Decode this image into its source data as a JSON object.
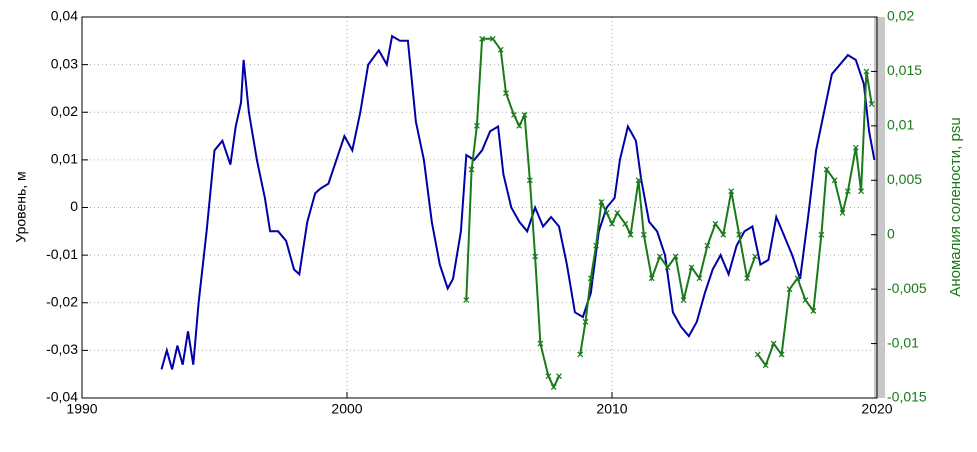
{
  "chart_data": {
    "type": "line",
    "ylabel": "Уровень, м",
    "y2label": "Аномалия солености, psu",
    "xlim": [
      1990,
      2020
    ],
    "xticks": [
      1990,
      2000,
      2010,
      2020
    ],
    "ylim": [
      -0.04,
      0.04
    ],
    "yticks": [
      {
        "value": -0.04,
        "label": "-0,04"
      },
      {
        "value": -0.03,
        "label": "-0,03"
      },
      {
        "value": -0.02,
        "label": "-0,02"
      },
      {
        "value": -0.01,
        "label": "-0,01"
      },
      0,
      {
        "value": 0.01,
        "label": "0,01"
      },
      {
        "value": 0.02,
        "label": "0,02"
      },
      {
        "value": 0.03,
        "label": "0,03"
      },
      {
        "value": 0.04,
        "label": "0,04"
      }
    ],
    "y2lim": [
      -0.015,
      0.02
    ],
    "y2ticks": [
      {
        "value": -0.015,
        "label": "-0,015"
      },
      {
        "value": -0.01,
        "label": "-0,01"
      },
      {
        "value": -0.005,
        "label": "-0,005"
      },
      0,
      {
        "value": 0.005,
        "label": "0,005"
      },
      {
        "value": 0.01,
        "label": "0,01"
      },
      {
        "value": 0.015,
        "label": "0,015"
      },
      {
        "value": 0.02,
        "label": "0,02"
      }
    ],
    "grid": true,
    "series": [
      {
        "color": "#0000a8",
        "axis": "y",
        "x": [
          1993.0,
          1993.2,
          1993.4,
          1993.6,
          1993.8,
          1994.0,
          1994.2,
          1994.4,
          1994.7,
          1995.0,
          1995.3,
          1995.6,
          1995.8,
          1996.0,
          1996.1,
          1996.3,
          1996.6,
          1996.9,
          1997.1,
          1997.4,
          1997.7,
          1998.0,
          1998.2,
          1998.5,
          1998.8,
          1999.0,
          1999.3,
          1999.6,
          1999.9,
          2000.2,
          2000.5,
          2000.8,
          2001.2,
          2001.5,
          2001.7,
          2002.0,
          2002.3,
          2002.6,
          2002.9,
          2003.2,
          2003.5,
          2003.8,
          2004.0,
          2004.3,
          2004.5,
          2004.8,
          2005.1,
          2005.4,
          2005.7,
          2005.9,
          2006.2,
          2006.5,
          2006.8,
          2007.1,
          2007.4,
          2007.7,
          2008.0,
          2008.3,
          2008.6,
          2008.9,
          2009.2,
          2009.5,
          2009.8,
          2010.1,
          2010.3,
          2010.6,
          2010.9,
          2011.1,
          2011.4,
          2011.7,
          2012.0,
          2012.3,
          2012.6,
          2012.9,
          2013.2,
          2013.5,
          2013.8,
          2014.1,
          2014.4,
          2014.7,
          2015.0,
          2015.3,
          2015.6,
          2015.9,
          2016.2,
          2016.5,
          2016.8,
          2017.1,
          2017.4,
          2017.7,
          2018.0,
          2018.3,
          2018.6,
          2018.9,
          2019.2,
          2019.5,
          2019.7,
          2019.9
        ],
        "values": [
          -0.034,
          -0.03,
          -0.034,
          -0.029,
          -0.033,
          -0.026,
          -0.033,
          -0.02,
          -0.005,
          0.012,
          0.014,
          0.009,
          0.017,
          0.022,
          0.031,
          0.02,
          0.01,
          0.002,
          -0.005,
          -0.005,
          -0.007,
          -0.013,
          -0.014,
          -0.003,
          0.003,
          0.004,
          0.005,
          0.01,
          0.015,
          0.012,
          0.02,
          0.03,
          0.033,
          0.03,
          0.036,
          0.035,
          0.035,
          0.018,
          0.01,
          -0.003,
          -0.012,
          -0.017,
          -0.015,
          -0.005,
          0.011,
          0.01,
          0.012,
          0.016,
          0.017,
          0.007,
          0.0,
          -0.003,
          -0.005,
          0.0,
          -0.004,
          -0.002,
          -0.004,
          -0.012,
          -0.022,
          -0.023,
          -0.018,
          -0.005,
          0.0,
          0.002,
          0.01,
          0.017,
          0.014,
          0.006,
          -0.003,
          -0.005,
          -0.01,
          -0.022,
          -0.025,
          -0.027,
          -0.024,
          -0.018,
          -0.013,
          -0.01,
          -0.014,
          -0.008,
          -0.005,
          -0.004,
          -0.012,
          -0.011,
          -0.002,
          -0.006,
          -0.01,
          -0.015,
          -0.002,
          0.012,
          0.02,
          0.028,
          0.03,
          0.032,
          0.031,
          0.026,
          0.016,
          0.01
        ]
      },
      {
        "color": "#1a7a1a",
        "axis": "y2",
        "marker": "x",
        "x": [
          2004.5,
          2004.7,
          2004.9,
          2005.1,
          2005.5,
          2005.8,
          2006.0,
          2006.3,
          2006.5,
          2006.7,
          2006.9,
          2007.1,
          2007.3,
          2007.6,
          2007.8,
          2008.0,
          null,
          2008.8,
          2009.0,
          2009.2,
          2009.4,
          2009.6,
          2009.8,
          2010.0,
          2010.2,
          2010.5,
          2010.7,
          2011.0,
          2011.2,
          2011.5,
          2011.8,
          2012.1,
          2012.4,
          2012.7,
          2013.0,
          2013.3,
          2013.6,
          2013.9,
          2014.2,
          2014.5,
          2014.8,
          2015.1,
          2015.4,
          null,
          2015.5,
          2015.8,
          2016.1,
          2016.4,
          2016.7,
          2017.0,
          2017.3,
          2017.6,
          2017.9,
          2018.1,
          2018.4,
          2018.7,
          2018.9,
          2019.2,
          2019.4,
          2019.6,
          2019.8
        ],
        "values": [
          -0.006,
          0.006,
          0.01,
          0.018,
          0.018,
          0.017,
          0.013,
          0.011,
          0.01,
          0.011,
          0.005,
          -0.002,
          -0.01,
          -0.013,
          -0.014,
          -0.013,
          null,
          -0.011,
          -0.008,
          -0.004,
          -0.001,
          0.003,
          0.002,
          0.001,
          0.002,
          0.001,
          0.0,
          0.005,
          0.0,
          -0.004,
          -0.002,
          -0.003,
          -0.002,
          -0.006,
          -0.003,
          -0.004,
          -0.001,
          0.001,
          0.0,
          0.004,
          0.0,
          -0.004,
          -0.002,
          null,
          -0.011,
          -0.012,
          -0.01,
          -0.011,
          -0.005,
          -0.004,
          -0.006,
          -0.007,
          0.0,
          0.006,
          0.005,
          0.002,
          0.004,
          0.008,
          0.004,
          0.015,
          0.012
        ]
      }
    ]
  }
}
